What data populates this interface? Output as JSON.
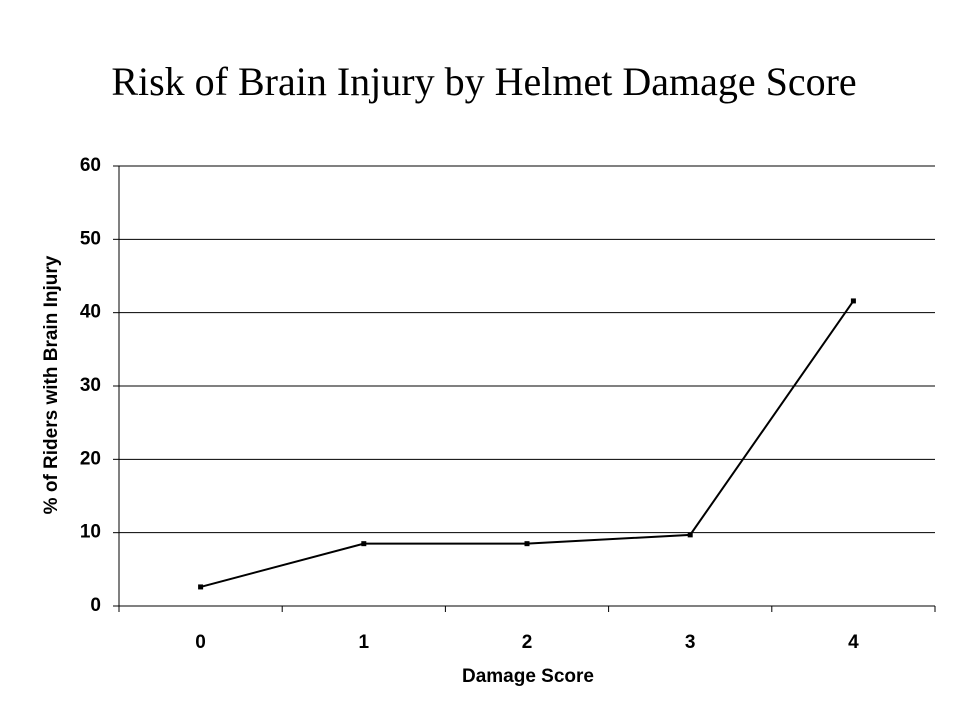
{
  "chart_data": {
    "type": "line",
    "title": "Risk of Brain Injury by Helmet Damage Score",
    "x_label": "Damage Score",
    "y_label": "% of Riders with Brain Injury",
    "categories": [
      "0",
      "1",
      "2",
      "3",
      "4"
    ],
    "values": [
      2.6,
      8.5,
      8.5,
      9.7,
      41.6
    ],
    "color": "#000000",
    "ylim": [
      0,
      60
    ],
    "yticks": [
      0,
      10,
      20,
      30,
      40,
      50,
      60
    ],
    "grid": true
  }
}
